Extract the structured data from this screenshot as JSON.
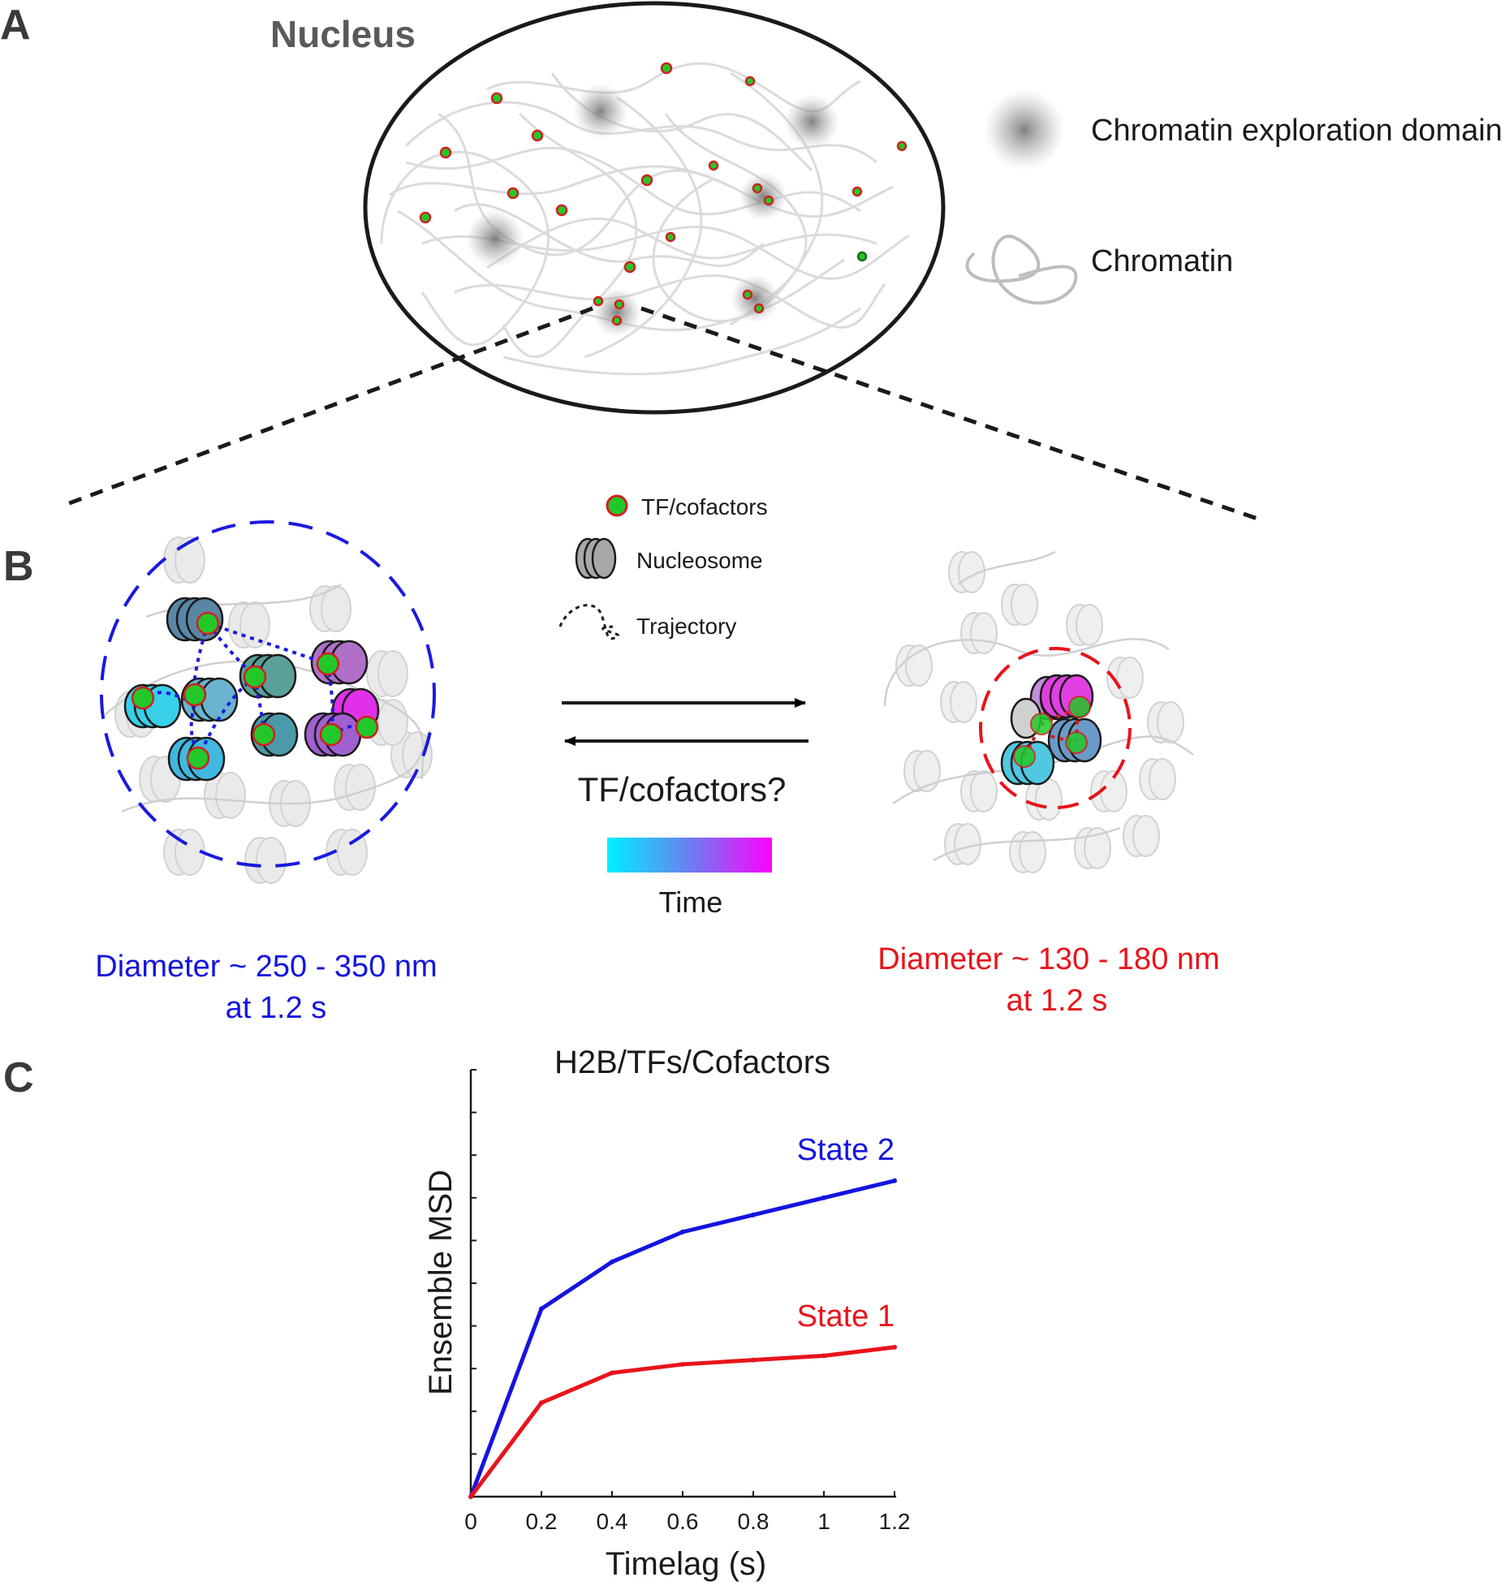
{
  "panels": {
    "a": {
      "letter": "A",
      "nucleus_title": "Nucleus",
      "legend_domain": "Chromatin exploration domain",
      "legend_chromatin": "Chromatin"
    },
    "b": {
      "letter": "B",
      "legend_tf": "TF/cofactors",
      "legend_nucleosome": "Nucleosome",
      "legend_trajectory": "Trajectory",
      "arrows_label": "TF/cofactors?",
      "time_label": "Time",
      "left_diameter": "Diameter ~ 250 - 350 nm",
      "left_time": "at 1.2 s",
      "right_diameter": "Diameter ~ 130 - 180 nm",
      "right_time": "at 1.2 s"
    },
    "c": {
      "letter": "C"
    }
  },
  "colors": {
    "state1": "#e8141b",
    "state2": "#1414e0",
    "tf_fill": "#22c82a",
    "tf_outline": "#d02020",
    "time_start": "#00f0ff",
    "time_end": "#ff00ff",
    "domain_gray": "#777777",
    "chromatin_gray": "#c8c8c8"
  },
  "chart_data": {
    "type": "line",
    "title": "H2B/TFs/Cofactors",
    "xlabel": "Timelag (s)",
    "ylabel": "Ensemble MSD",
    "x": [
      0,
      0.2,
      0.4,
      0.6,
      0.8,
      1.0,
      1.2
    ],
    "xtick_labels": [
      "0",
      "0.2",
      "0.4",
      "0.6",
      "0.8",
      "1",
      "1.2"
    ],
    "xlim": [
      0,
      1.2
    ],
    "ylim": [
      0,
      1.0
    ],
    "grid": false,
    "series": [
      {
        "name": "State 2",
        "values": [
          0,
          0.44,
          0.55,
          0.62,
          0.66,
          0.7,
          0.74
        ]
      },
      {
        "name": "State 1",
        "values": [
          0,
          0.22,
          0.29,
          0.31,
          0.32,
          0.33,
          0.35
        ]
      }
    ]
  }
}
